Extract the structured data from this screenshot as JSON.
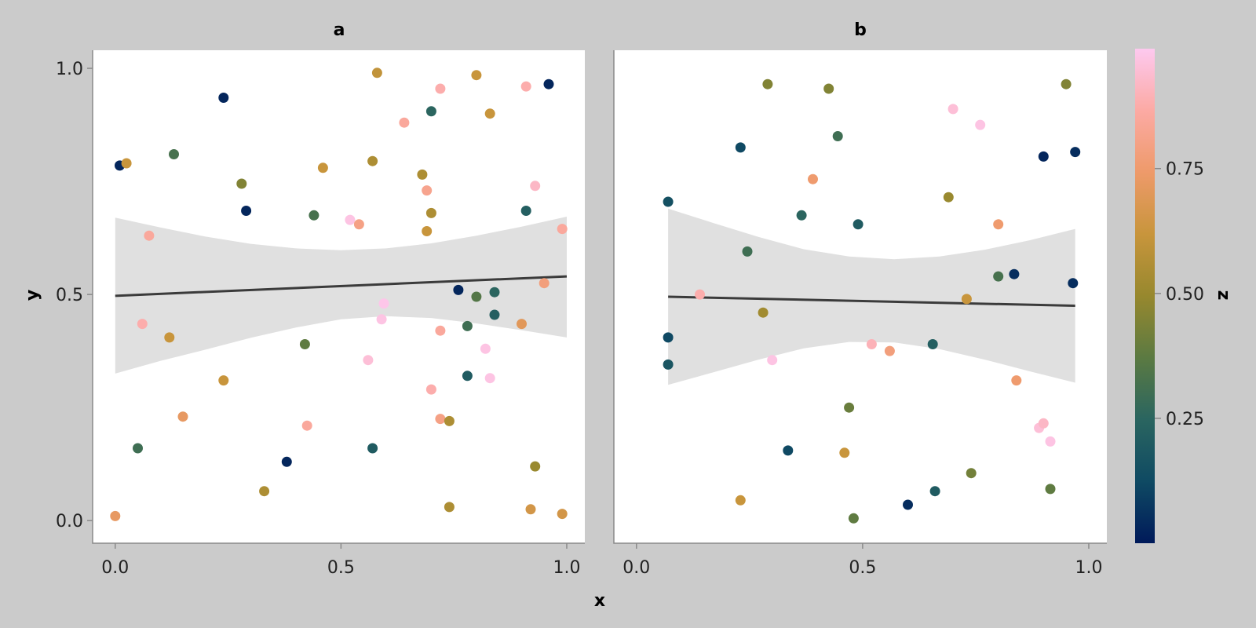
{
  "chart_data": [
    {
      "type": "scatter",
      "facet": "a",
      "xlabel": "x",
      "ylabel": "y",
      "xlim": [
        -0.05,
        1.04
      ],
      "ylim": [
        -0.05,
        1.04
      ],
      "xticks": [
        "0.0",
        "0.5",
        "1.0"
      ],
      "yticks": [
        "0.0",
        "0.5",
        "1.0"
      ],
      "xtick_values": [
        0,
        0.5,
        1
      ],
      "ytick_values": [
        0,
        0.5,
        1
      ],
      "trend": {
        "x": [
          0.0,
          1.0
        ],
        "y": [
          0.497,
          0.54
        ],
        "band_x": [
          0.0,
          0.1,
          0.2,
          0.3,
          0.4,
          0.5,
          0.6,
          0.7,
          0.8,
          0.9,
          1.0
        ],
        "band_upper": [
          0.67,
          0.648,
          0.628,
          0.612,
          0.602,
          0.598,
          0.602,
          0.613,
          0.63,
          0.65,
          0.672
        ],
        "band_lower": [
          0.325,
          0.353,
          0.378,
          0.404,
          0.427,
          0.445,
          0.452,
          0.448,
          0.436,
          0.421,
          0.405
        ]
      },
      "points": [
        {
          "x": 0.01,
          "y": 0.785,
          "z": 0.03
        },
        {
          "x": 0.025,
          "y": 0.79,
          "z": 0.62
        },
        {
          "x": 0.0,
          "y": 0.01,
          "z": 0.72
        },
        {
          "x": 0.05,
          "y": 0.16,
          "z": 0.3
        },
        {
          "x": 0.06,
          "y": 0.435,
          "z": 0.88
        },
        {
          "x": 0.075,
          "y": 0.63,
          "z": 0.85
        },
        {
          "x": 0.12,
          "y": 0.405,
          "z": 0.62
        },
        {
          "x": 0.13,
          "y": 0.81,
          "z": 0.32
        },
        {
          "x": 0.15,
          "y": 0.23,
          "z": 0.72
        },
        {
          "x": 0.24,
          "y": 0.935,
          "z": 0.03
        },
        {
          "x": 0.24,
          "y": 0.31,
          "z": 0.62
        },
        {
          "x": 0.28,
          "y": 0.745,
          "z": 0.45
        },
        {
          "x": 0.29,
          "y": 0.685,
          "z": 0.03
        },
        {
          "x": 0.33,
          "y": 0.065,
          "z": 0.55
        },
        {
          "x": 0.38,
          "y": 0.13,
          "z": 0.03
        },
        {
          "x": 0.42,
          "y": 0.39,
          "z": 0.38
        },
        {
          "x": 0.425,
          "y": 0.21,
          "z": 0.85
        },
        {
          "x": 0.44,
          "y": 0.675,
          "z": 0.32
        },
        {
          "x": 0.46,
          "y": 0.78,
          "z": 0.62
        },
        {
          "x": 0.52,
          "y": 0.665,
          "z": 0.97
        },
        {
          "x": 0.54,
          "y": 0.655,
          "z": 0.8
        },
        {
          "x": 0.56,
          "y": 0.355,
          "z": 0.95
        },
        {
          "x": 0.57,
          "y": 0.16,
          "z": 0.2
        },
        {
          "x": 0.57,
          "y": 0.795,
          "z": 0.55
        },
        {
          "x": 0.58,
          "y": 0.99,
          "z": 0.6
        },
        {
          "x": 0.59,
          "y": 0.445,
          "z": 0.97
        },
        {
          "x": 0.595,
          "y": 0.48,
          "z": 0.98
        },
        {
          "x": 0.64,
          "y": 0.88,
          "z": 0.85
        },
        {
          "x": 0.68,
          "y": 0.765,
          "z": 0.55
        },
        {
          "x": 0.69,
          "y": 0.73,
          "z": 0.82
        },
        {
          "x": 0.69,
          "y": 0.64,
          "z": 0.62
        },
        {
          "x": 0.7,
          "y": 0.68,
          "z": 0.55
        },
        {
          "x": 0.7,
          "y": 0.905,
          "z": 0.25
        },
        {
          "x": 0.7,
          "y": 0.29,
          "z": 0.88
        },
        {
          "x": 0.72,
          "y": 0.42,
          "z": 0.85
        },
        {
          "x": 0.72,
          "y": 0.225,
          "z": 0.8
        },
        {
          "x": 0.72,
          "y": 0.955,
          "z": 0.88
        },
        {
          "x": 0.74,
          "y": 0.22,
          "z": 0.55
        },
        {
          "x": 0.74,
          "y": 0.03,
          "z": 0.55
        },
        {
          "x": 0.76,
          "y": 0.51,
          "z": 0.03
        },
        {
          "x": 0.78,
          "y": 0.43,
          "z": 0.3
        },
        {
          "x": 0.78,
          "y": 0.32,
          "z": 0.2
        },
        {
          "x": 0.8,
          "y": 0.495,
          "z": 0.35
        },
        {
          "x": 0.8,
          "y": 0.985,
          "z": 0.62
        },
        {
          "x": 0.82,
          "y": 0.38,
          "z": 0.97
        },
        {
          "x": 0.83,
          "y": 0.315,
          "z": 0.97
        },
        {
          "x": 0.83,
          "y": 0.9,
          "z": 0.62
        },
        {
          "x": 0.84,
          "y": 0.505,
          "z": 0.25
        },
        {
          "x": 0.84,
          "y": 0.455,
          "z": 0.22
        },
        {
          "x": 0.9,
          "y": 0.435,
          "z": 0.7
        },
        {
          "x": 0.91,
          "y": 0.685,
          "z": 0.22
        },
        {
          "x": 0.91,
          "y": 0.96,
          "z": 0.88
        },
        {
          "x": 0.92,
          "y": 0.025,
          "z": 0.65
        },
        {
          "x": 0.93,
          "y": 0.74,
          "z": 0.92
        },
        {
          "x": 0.93,
          "y": 0.12,
          "z": 0.5
        },
        {
          "x": 0.95,
          "y": 0.525,
          "z": 0.78
        },
        {
          "x": 0.96,
          "y": 0.965,
          "z": 0.03
        },
        {
          "x": 0.99,
          "y": 0.645,
          "z": 0.85
        },
        {
          "x": 0.99,
          "y": 0.015,
          "z": 0.65
        }
      ]
    },
    {
      "type": "scatter",
      "facet": "b",
      "xlabel": "x",
      "ylabel": "y",
      "xlim": [
        -0.05,
        1.04
      ],
      "ylim": [
        -0.05,
        1.04
      ],
      "xticks": [
        "0.0",
        "0.5",
        "1.0"
      ],
      "xtick_values": [
        0,
        0.5,
        1
      ],
      "trend": {
        "x": [
          0.07,
          0.97
        ],
        "y": [
          0.495,
          0.475
        ],
        "band_x": [
          0.07,
          0.17,
          0.27,
          0.37,
          0.47,
          0.57,
          0.67,
          0.77,
          0.87,
          0.97
        ],
        "band_upper": [
          0.69,
          0.658,
          0.627,
          0.6,
          0.584,
          0.578,
          0.584,
          0.599,
          0.62,
          0.645
        ],
        "band_lower": [
          0.3,
          0.328,
          0.356,
          0.381,
          0.395,
          0.394,
          0.379,
          0.356,
          0.33,
          0.305
        ]
      },
      "points": [
        {
          "x": 0.07,
          "y": 0.705,
          "z": 0.15
        },
        {
          "x": 0.07,
          "y": 0.405,
          "z": 0.12
        },
        {
          "x": 0.07,
          "y": 0.345,
          "z": 0.18
        },
        {
          "x": 0.14,
          "y": 0.5,
          "z": 0.88
        },
        {
          "x": 0.23,
          "y": 0.825,
          "z": 0.12
        },
        {
          "x": 0.23,
          "y": 0.045,
          "z": 0.62
        },
        {
          "x": 0.245,
          "y": 0.595,
          "z": 0.3
        },
        {
          "x": 0.28,
          "y": 0.46,
          "z": 0.52
        },
        {
          "x": 0.29,
          "y": 0.965,
          "z": 0.45
        },
        {
          "x": 0.3,
          "y": 0.355,
          "z": 0.97
        },
        {
          "x": 0.335,
          "y": 0.155,
          "z": 0.12
        },
        {
          "x": 0.365,
          "y": 0.675,
          "z": 0.25
        },
        {
          "x": 0.39,
          "y": 0.755,
          "z": 0.75
        },
        {
          "x": 0.425,
          "y": 0.955,
          "z": 0.45
        },
        {
          "x": 0.445,
          "y": 0.85,
          "z": 0.3
        },
        {
          "x": 0.46,
          "y": 0.15,
          "z": 0.62
        },
        {
          "x": 0.47,
          "y": 0.25,
          "z": 0.4
        },
        {
          "x": 0.48,
          "y": 0.005,
          "z": 0.38
        },
        {
          "x": 0.49,
          "y": 0.655,
          "z": 0.2
        },
        {
          "x": 0.52,
          "y": 0.39,
          "z": 0.9
        },
        {
          "x": 0.56,
          "y": 0.375,
          "z": 0.78
        },
        {
          "x": 0.6,
          "y": 0.035,
          "z": 0.05
        },
        {
          "x": 0.655,
          "y": 0.39,
          "z": 0.22
        },
        {
          "x": 0.66,
          "y": 0.065,
          "z": 0.2
        },
        {
          "x": 0.69,
          "y": 0.715,
          "z": 0.5
        },
        {
          "x": 0.7,
          "y": 0.91,
          "z": 0.95
        },
        {
          "x": 0.73,
          "y": 0.49,
          "z": 0.62
        },
        {
          "x": 0.74,
          "y": 0.105,
          "z": 0.42
        },
        {
          "x": 0.76,
          "y": 0.875,
          "z": 0.97
        },
        {
          "x": 0.8,
          "y": 0.54,
          "z": 0.32
        },
        {
          "x": 0.8,
          "y": 0.655,
          "z": 0.75
        },
        {
          "x": 0.835,
          "y": 0.545,
          "z": 0.05
        },
        {
          "x": 0.84,
          "y": 0.31,
          "z": 0.75
        },
        {
          "x": 0.89,
          "y": 0.205,
          "z": 0.95
        },
        {
          "x": 0.9,
          "y": 0.215,
          "z": 0.92
        },
        {
          "x": 0.9,
          "y": 0.805,
          "z": 0.03
        },
        {
          "x": 0.915,
          "y": 0.175,
          "z": 0.97
        },
        {
          "x": 0.915,
          "y": 0.07,
          "z": 0.38
        },
        {
          "x": 0.95,
          "y": 0.965,
          "z": 0.45
        },
        {
          "x": 0.965,
          "y": 0.525,
          "z": 0.05
        },
        {
          "x": 0.97,
          "y": 0.815,
          "z": 0.05
        }
      ]
    }
  ],
  "colorbar": {
    "label": "z",
    "ticks": [
      "0.25",
      "0.50",
      "0.75"
    ],
    "tick_values": [
      0.25,
      0.5,
      0.75
    ],
    "range": [
      0.0,
      0.99
    ],
    "colormap": [
      "#001a5a",
      "#0f4a63",
      "#2a6560",
      "#5b7a42",
      "#97882e",
      "#c8953c",
      "#ee9a6a",
      "#fcaaa4",
      "#fdc9ef"
    ]
  },
  "axis": {
    "xlabel": "x",
    "ylabel": "y"
  },
  "facets": {
    "a": "a",
    "b": "b"
  }
}
